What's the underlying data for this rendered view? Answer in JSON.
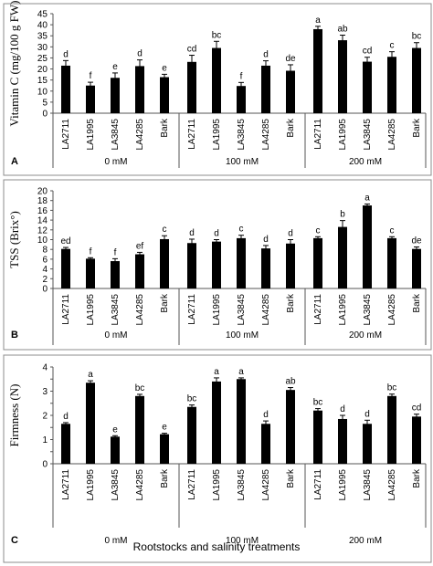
{
  "figure": {
    "footer_label": "Rootstocks and salinity treatments"
  },
  "chart_data": [
    {
      "panel": "A",
      "type": "bar",
      "ylabel": "Vitamin C (mg/100 g FW)",
      "ylim": [
        0,
        45
      ],
      "yticks": [
        0,
        5,
        10,
        15,
        20,
        25,
        30,
        35,
        40,
        45
      ],
      "groups": [
        "0 mM",
        "100 mM",
        "200 mM"
      ],
      "categories": [
        "LA2711",
        "LA1995",
        "LA3845",
        "LA4285",
        "Bark"
      ],
      "values": [
        [
          21.5,
          12.5,
          16,
          21.3,
          16.3
        ],
        [
          23.2,
          29.5,
          12.3,
          21.5,
          19.2
        ],
        [
          38,
          33,
          23.3,
          25.5,
          29.5
        ]
      ],
      "errors": [
        [
          2.3,
          1.5,
          2.2,
          2.8,
          1.3
        ],
        [
          3,
          3,
          1.6,
          2.2,
          2.7
        ],
        [
          1.3,
          2.3,
          2,
          2.3,
          2.4
        ]
      ],
      "letters": [
        [
          "d",
          "f",
          "e",
          "d",
          "e"
        ],
        [
          "cd",
          "bc",
          "f",
          "d",
          "de"
        ],
        [
          "a",
          "ab",
          "cd",
          "c",
          "bc"
        ]
      ],
      "grid": false
    },
    {
      "panel": "B",
      "type": "bar",
      "ylabel": "TSS (Brix°)",
      "ylim": [
        0,
        20
      ],
      "yticks": [
        0,
        2,
        4,
        6,
        8,
        10,
        12,
        14,
        16,
        18,
        20
      ],
      "groups": [
        "0 mM",
        "100 mM",
        "200 mM"
      ],
      "categories": [
        "LA2711",
        "LA1995",
        "LA3845",
        "LA4285",
        "Bark"
      ],
      "values": [
        [
          8.1,
          6.1,
          5.6,
          7,
          10.1
        ],
        [
          9.3,
          9.6,
          10.3,
          8.2,
          9.2
        ],
        [
          10.3,
          12.6,
          17,
          10.3,
          8.1
        ]
      ],
      "errors": [
        [
          0.3,
          0.2,
          0.5,
          0.4,
          0.7
        ],
        [
          0.8,
          0.4,
          0.6,
          0.6,
          0.8
        ],
        [
          0.3,
          1.3,
          0.3,
          0.3,
          0.4
        ]
      ],
      "letters": [
        [
          "ed",
          "f",
          "f",
          "ef",
          "c"
        ],
        [
          "d",
          "d",
          "c",
          "d",
          "d"
        ],
        [
          "c",
          "b",
          "a",
          "c",
          "de"
        ]
      ],
      "grid": false
    },
    {
      "panel": "C",
      "type": "bar",
      "ylabel": "Firmness (N)",
      "ylim": [
        0,
        4
      ],
      "yticks": [
        0,
        0.5,
        1,
        1.5,
        2,
        2.5,
        3,
        3.5,
        4
      ],
      "yticklabels": [
        "0",
        "",
        "1",
        "",
        "2",
        "",
        "3",
        "",
        "4"
      ],
      "groups": [
        "0 mM",
        "100 mM",
        "200 mM"
      ],
      "categories": [
        "LA2711",
        "LA1995",
        "LA3845",
        "LA4285",
        "Bark"
      ],
      "values": [
        [
          1.65,
          3.35,
          1.12,
          2.8,
          1.22
        ],
        [
          2.35,
          3.4,
          3.5,
          1.65,
          3.05
        ],
        [
          2.2,
          1.85,
          1.65,
          2.8,
          1.95
        ]
      ],
      "errors": [
        [
          0.05,
          0.08,
          0.04,
          0.07,
          0.04
        ],
        [
          0.08,
          0.15,
          0.05,
          0.12,
          0.1
        ],
        [
          0.08,
          0.15,
          0.15,
          0.08,
          0.1
        ]
      ],
      "letters": [
        [
          "d",
          "a",
          "e",
          "bc",
          "e"
        ],
        [
          "bc",
          "a",
          "a",
          "d",
          "ab"
        ],
        [
          "bc",
          "d",
          "d",
          "bc",
          "cd"
        ]
      ],
      "grid": false
    }
  ]
}
